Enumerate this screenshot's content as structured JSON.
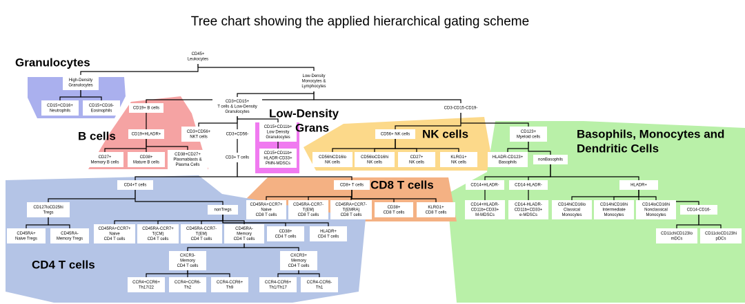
{
  "title": "Tree chart showing the applied hierarchical gating scheme",
  "groups": [
    {
      "lines": [
        "Granulocytes"
      ]
    },
    {
      "lines": [
        "B cells"
      ]
    },
    {
      "lines": [
        "Low-Density",
        "Grans"
      ]
    },
    {
      "lines": [
        "NK cells"
      ]
    },
    {
      "lines": [
        "Basophils, Monocytes and",
        "Dendritic Cells"
      ]
    },
    {
      "lines": [
        "CD8 T cells"
      ]
    },
    {
      "lines": [
        "CD4 T cells"
      ]
    }
  ],
  "nodes": [
    {
      "lines": [
        "CD45+",
        "Leukocytes"
      ]
    },
    {
      "lines": [
        "High-Density",
        "Granulocytes"
      ]
    },
    {
      "lines": [
        "CD15+CD16+",
        "Neutrophils"
      ]
    },
    {
      "lines": [
        "CD15+CD16-",
        "Eosinophils"
      ]
    },
    {
      "lines": [
        "Low-Density",
        "Monocytes &",
        "Lymphocytes"
      ]
    },
    {
      "lines": [
        "CD3+CD15+",
        "T cells & Low-Density",
        "Granulocytes"
      ]
    },
    {
      "lines": [
        "CD3-CD15-CD19-"
      ]
    },
    {
      "lines": [
        "CD19+ B cells"
      ]
    },
    {
      "lines": [
        "CD19+HLADR+"
      ]
    },
    {
      "lines": [
        "CD27+",
        "Memory B cells"
      ]
    },
    {
      "lines": [
        "CD38+",
        "Mature B cells"
      ]
    },
    {
      "lines": [
        "CD38+CD27+",
        "Plasmablasts &",
        "Plasma Cells"
      ]
    },
    {
      "lines": [
        "CD3+CD56+",
        "NKT cells"
      ]
    },
    {
      "lines": [
        "CD3+CD56-"
      ]
    },
    {
      "lines": [
        "CD3+ T cells"
      ]
    },
    {
      "lines": [
        "CD15+CD11b+",
        "Low Density",
        "Granulocytes"
      ]
    },
    {
      "lines": [
        "CD15+CD11b+",
        "HLADR-CD33+",
        "PMN-MDSCs"
      ]
    },
    {
      "lines": [
        "CD56+ NK cells"
      ]
    },
    {
      "lines": [
        "CD56hiCD16lo",
        "NK cells"
      ]
    },
    {
      "lines": [
        "CD56loCD16hi",
        "NK cells"
      ]
    },
    {
      "lines": [
        "CD27+",
        "NK cells"
      ]
    },
    {
      "lines": [
        "KLRG1+",
        "NK cells"
      ]
    },
    {
      "lines": [
        "CD123+",
        "Myeloid cells"
      ]
    },
    {
      "lines": [
        "HLADR-CD123+",
        "Basophils"
      ]
    },
    {
      "lines": [
        "nonBasophils"
      ]
    },
    {
      "lines": [
        "CD4+T cells"
      ]
    },
    {
      "lines": [
        "CD127loCD25hi",
        "Tregs"
      ]
    },
    {
      "lines": [
        "CD45RA+",
        "Naive Tregs"
      ]
    },
    {
      "lines": [
        "CD45RA-",
        "Memory Tregs"
      ]
    },
    {
      "lines": [
        "nonTregs"
      ]
    },
    {
      "lines": [
        "CD45RA+CCR7+",
        "Naive",
        "CD4 T cells"
      ]
    },
    {
      "lines": [
        "CD45RA-CCR7+",
        "T(CM)",
        "CD4 T cells"
      ]
    },
    {
      "lines": [
        "CD45RA-CCR7-",
        "T(EM)",
        "CD4 T cells"
      ]
    },
    {
      "lines": [
        "CD45RA-",
        "Memory",
        "CD4 T cells"
      ]
    },
    {
      "lines": [
        "CD38+",
        "CD4 T cells"
      ]
    },
    {
      "lines": [
        "HLADR+",
        "CD4 T cells"
      ]
    },
    {
      "lines": [
        "CXCR3-",
        "Memory",
        "CD4 T cells"
      ]
    },
    {
      "lines": [
        "CXCR3+",
        "Memory",
        "CD4 T cells"
      ]
    },
    {
      "lines": [
        "CCR4+CCR6+",
        "Th17/22"
      ]
    },
    {
      "lines": [
        "CCR4+CCR6-",
        "Th2"
      ]
    },
    {
      "lines": [
        "CCR4-CCR6+",
        "Th9"
      ]
    },
    {
      "lines": [
        "CCR4-CCR6+",
        "Th1/Th17"
      ]
    },
    {
      "lines": [
        "CCR4-CCR6-",
        "Th1"
      ]
    },
    {
      "lines": [
        "CD8+ T cells"
      ]
    },
    {
      "lines": [
        "CD45RA+CCR7+",
        "Naive",
        "CD8 T cells"
      ]
    },
    {
      "lines": [
        "CD45RA-CCR7-",
        "T(EM)",
        "CD8 T cells"
      ]
    },
    {
      "lines": [
        "CD45RA+CCR7-",
        "T(EMRA)",
        "CD8 T cells"
      ]
    },
    {
      "lines": [
        "CD38+",
        "CD8 T cells"
      ]
    },
    {
      "lines": [
        "KLRG1+",
        "CD8 T cells"
      ]
    },
    {
      "lines": [
        "CD14+HLADR-"
      ]
    },
    {
      "lines": [
        "CD14+HLADR-",
        "CD11b+CD33+",
        "M-MDSCs"
      ]
    },
    {
      "lines": [
        "CD14-HLADR-"
      ]
    },
    {
      "lines": [
        "CD14-HLADR-",
        "CD11b+CD33+",
        "e-MDSCs"
      ]
    },
    {
      "lines": [
        "HLADR+"
      ]
    },
    {
      "lines": [
        "CD14hiCD16lo",
        "Classical",
        "Monocytes"
      ]
    },
    {
      "lines": [
        "CD14hiCD16hi",
        "Intermediate",
        "Monocytes"
      ]
    },
    {
      "lines": [
        "CD14loCD16hi",
        "Nonclassical",
        "Monocytes"
      ]
    },
    {
      "lines": [
        "CD14-CD16-"
      ]
    },
    {
      "lines": [
        "CD11chiCD123lo",
        "mDCs"
      ]
    },
    {
      "lines": [
        "CD11cloCD123hi",
        "pDCs"
      ]
    }
  ]
}
